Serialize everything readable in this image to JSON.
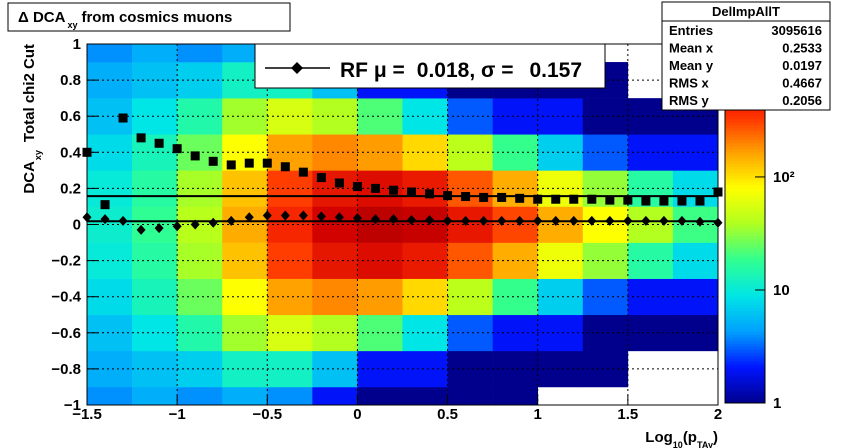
{
  "chart_data": {
    "type": "heatmap-profile",
    "title": [
      "Δ DCA",
      "xy",
      "from cosmics muons"
    ],
    "y_label": [
      "DCA",
      "xy",
      "Total chi2 Cut"
    ],
    "x_label": [
      "Log",
      "10",
      "(p",
      "TAy",
      ")"
    ],
    "xlim": [
      -1.5,
      2
    ],
    "ylim": [
      -1,
      1
    ],
    "xticks": [
      {
        "value": -1.5,
        "label": "−1.5"
      },
      {
        "value": -1,
        "label": "−1"
      },
      {
        "value": -0.5,
        "label": "−0.5"
      },
      0,
      0.5,
      1,
      1.5,
      2
    ],
    "yticks": [
      {
        "value": -1,
        "label": "−1"
      },
      {
        "value": -0.8,
        "label": "−0.8"
      },
      {
        "value": -0.6,
        "label": "−0.6"
      },
      {
        "value": -0.4,
        "label": "−0.4"
      },
      {
        "value": -0.2,
        "label": "−0.2"
      },
      0,
      0.2,
      0.4,
      0.6,
      0.8,
      1
    ],
    "grid": true,
    "zlim": [
      1,
      1500
    ],
    "zlog": true,
    "zticks": [
      1,
      10,
      {
        "value": 100,
        "label": "10²"
      }
    ],
    "palette": [
      "#00008c",
      "#0014ff",
      "#00a0ff",
      "#00e6e6",
      "#30ff90",
      "#b0ff20",
      "#ffff00",
      "#ffa000",
      "#ff3000",
      "#d00000",
      "#900000"
    ],
    "xbins": [
      -1.5,
      -1.25,
      -1,
      -0.75,
      -0.5,
      -0.25,
      0,
      0.25,
      0.5,
      0.75,
      1,
      1.25,
      1.5,
      1.75,
      2
    ],
    "ybins": [
      -1,
      -0.9,
      -0.7,
      -0.5,
      -0.3,
      -0.1,
      0.1,
      0.3,
      0.5,
      0.7,
      0.9,
      1
    ],
    "z": [
      [
        4,
        5,
        4,
        5,
        4,
        2,
        1,
        1,
        1,
        1,
        0,
        0,
        0,
        0
      ],
      [
        5,
        6,
        7,
        12,
        12,
        6,
        2,
        2,
        1,
        1,
        1,
        1,
        0,
        0
      ],
      [
        6,
        9,
        15,
        36,
        55,
        40,
        22,
        9,
        3,
        2,
        2,
        1,
        1,
        1
      ],
      [
        8,
        13,
        26,
        80,
        165,
        195,
        172,
        108,
        43,
        19,
        7,
        3,
        2,
        2
      ],
      [
        10,
        16,
        37,
        129,
        320,
        510,
        595,
        485,
        270,
        150,
        69,
        33,
        16,
        8
      ],
      [
        11,
        18,
        42,
        152,
        400,
        700,
        900,
        800,
        500,
        300,
        150,
        80,
        40,
        20
      ],
      [
        10,
        16,
        37,
        129,
        320,
        510,
        595,
        485,
        270,
        150,
        69,
        33,
        16,
        8
      ],
      [
        8,
        13,
        26,
        80,
        165,
        195,
        172,
        108,
        43,
        19,
        7,
        3,
        2,
        2
      ],
      [
        6,
        9,
        15,
        36,
        55,
        40,
        22,
        9,
        3,
        2,
        2,
        1,
        1,
        1
      ],
      [
        5,
        6,
        7,
        12,
        12,
        6,
        2,
        2,
        1,
        1,
        1,
        1,
        0,
        0
      ],
      [
        4,
        5,
        4,
        5,
        4,
        2,
        1,
        1,
        1,
        1,
        0,
        0,
        0,
        0
      ]
    ],
    "x": [
      -1.5,
      -1.4,
      -1.3,
      -1.2,
      -1.1,
      -1.0,
      -0.9,
      -0.8,
      -0.7,
      -0.6,
      -0.5,
      -0.4,
      -0.3,
      -0.2,
      -0.1,
      0,
      0.1,
      0.2,
      0.3,
      0.4,
      0.5,
      0.6,
      0.7,
      0.8,
      0.9,
      1.0,
      1.1,
      1.2,
      1.3,
      1.4,
      1.5,
      1.6,
      1.7,
      1.8,
      1.9,
      2.0
    ],
    "series": [
      {
        "marker": "diamond",
        "color": "#000000",
        "values": [
          0.04,
          0.03,
          0.02,
          -0.03,
          -0.02,
          -0.01,
          0.0,
          0.01,
          0.02,
          0.04,
          0.05,
          0.05,
          0.05,
          0.045,
          0.04,
          0.035,
          0.03,
          0.03,
          0.025,
          0.025,
          0.02,
          0.02,
          0.02,
          0.02,
          0.02,
          0.02,
          0.02,
          0.02,
          0.02,
          0.02,
          0.02,
          0.02,
          0.02,
          0.02,
          0.015,
          0.01
        ]
      },
      {
        "marker": "square",
        "color": "#000000",
        "values": [
          0.4,
          0.11,
          0.59,
          0.48,
          0.45,
          0.42,
          0.38,
          0.35,
          0.33,
          0.34,
          0.34,
          0.32,
          0.29,
          0.26,
          0.23,
          0.21,
          0.2,
          0.19,
          0.18,
          0.17,
          0.16,
          0.155,
          0.15,
          0.15,
          0.145,
          0.14,
          0.14,
          0.14,
          0.14,
          0.135,
          0.135,
          0.13,
          0.13,
          0.13,
          0.13,
          0.18
        ]
      }
    ],
    "fit": {
      "mu": 0.018,
      "sigma": 0.157
    },
    "legend_text": [
      "RF μ =",
      ", σ ="
    ],
    "stats": {
      "title": "DelImpAllT",
      "rows": [
        {
          "label": "Entries",
          "value": 3095616
        },
        {
          "label": "Mean x",
          "value": 0.2533
        },
        {
          "label": "Mean y",
          "value": 0.0197
        },
        {
          "label": "RMS x",
          "value": 0.4667
        },
        {
          "label": "RMS y",
          "value": 0.2056
        }
      ]
    }
  }
}
